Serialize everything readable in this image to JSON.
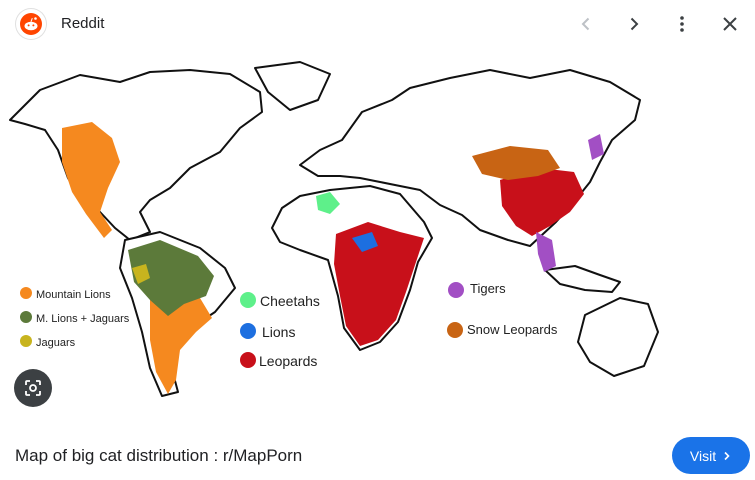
{
  "header": {
    "source_name": "Reddit",
    "logo_icon": "reddit-logo",
    "prev_icon": "chevron-left-icon",
    "next_icon": "chevron-right-icon",
    "more_icon": "more-vert-icon",
    "close_icon": "close-icon"
  },
  "map": {
    "legend_left": [
      {
        "label": "Mountain Lions",
        "color": "#f5891f"
      },
      {
        "label": "M. Lions + Jaguars",
        "color": "#5c7a3a"
      },
      {
        "label": "Jaguars",
        "color": "#c8b41e"
      }
    ],
    "legend_center": [
      {
        "label": "Cheetahs",
        "color": "#5ef08a"
      },
      {
        "label": "Lions",
        "color": "#1d6fe0"
      },
      {
        "label": "Leopards",
        "color": "#c8101a"
      }
    ],
    "legend_right": [
      {
        "label": "Tigers",
        "color": "#a24fc4"
      },
      {
        "label": "Snow Leopards",
        "color": "#c86414"
      }
    ]
  },
  "lens_icon": "google-lens-icon",
  "caption": "Map of big cat distribution : r/MapPorn",
  "visit_button": {
    "label": "Visit",
    "icon": "chevron-right-icon"
  }
}
